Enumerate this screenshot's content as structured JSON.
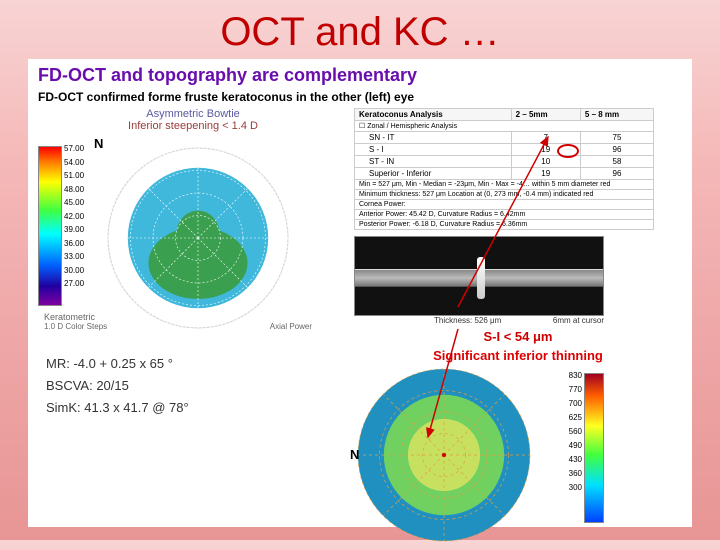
{
  "slide_title": "OCT and KC …",
  "panel": {
    "title": "FD-OCT and topography are complementary",
    "subtitle": "FD-OCT confirmed forme fruste keratoconus in the other (left) eye"
  },
  "topo": {
    "line1": "Asymmetric Bowtie",
    "line2": "Inferior steepening < 1.4 D",
    "n_label": "N",
    "colorbar": {
      "values": [
        "57.00",
        "54.00",
        "51.00",
        "48.00",
        "45.00",
        "42.00",
        "39.00",
        "36.00",
        "33.00",
        "30.00",
        "27.00"
      ]
    },
    "caption1": "Keratometric",
    "caption2": "1.0 D Color Steps",
    "caption3": "Axial Power",
    "map": {
      "type": "topography_bowtie",
      "center_color": "#3aa050",
      "ring_color": "#2ab0d8",
      "bg_color": "#ffffff",
      "grid_color": "#cccccc",
      "rings": 4,
      "spokes": 8
    }
  },
  "clinical": {
    "mr": "MR: -4.0 + 0.25 x 65 °",
    "bscva": "BSCVA: 20/15",
    "simk": "SimK: 41.3 x 41.7 @ 78°"
  },
  "table": {
    "header": [
      "Keratoconus Analysis",
      "2 – 5mm",
      "5 – 8 mm"
    ],
    "sub": "Zonal / Hemispheric Analysis",
    "rows": [
      [
        "SN - IT",
        "7",
        "75"
      ],
      [
        "S - I",
        "19",
        "96"
      ],
      [
        "ST - IN",
        "10",
        "58"
      ],
      [
        "Superior - Inferior",
        "19",
        "96"
      ]
    ],
    "circle_row": 1,
    "circle_col": 1,
    "meta1": "Min = 527 μm,  Min - Median = -23μm,  Min - Max = -4…   within 5 mm diameter red",
    "meta2": "Minimum thickness: 527 μm   Location at (0, 273 mm, -0.4 mm) indicated red",
    "meta3": "Cornea Power:",
    "meta4": "Anterior Power: 45.42 D, Curvature Radius = 6.42mm",
    "meta5": "Posterior Power: -6.18 D, Curvature Radius = 6.36mm"
  },
  "oct": {
    "thickness_label": "Thickness: 526 μm",
    "right_label": "6mm at cursor"
  },
  "si": {
    "line1": "S-I < 54 μm",
    "line2": "Significant inferior thinning"
  },
  "pachy": {
    "n_label": "N",
    "colorbar": {
      "unit": "μm",
      "values": [
        "830",
        "770",
        "700",
        "625",
        "560",
        "490",
        "430",
        "360",
        "300"
      ]
    },
    "map": {
      "type": "pachymetry",
      "center_color": "#c8e060",
      "mid_color": "#70d060",
      "outer_color": "#2090c0",
      "grid_color": "#e0a040",
      "rings": 4,
      "spokes": 8
    }
  },
  "arrows": {
    "color": "#d00000",
    "stroke": 1.5
  }
}
